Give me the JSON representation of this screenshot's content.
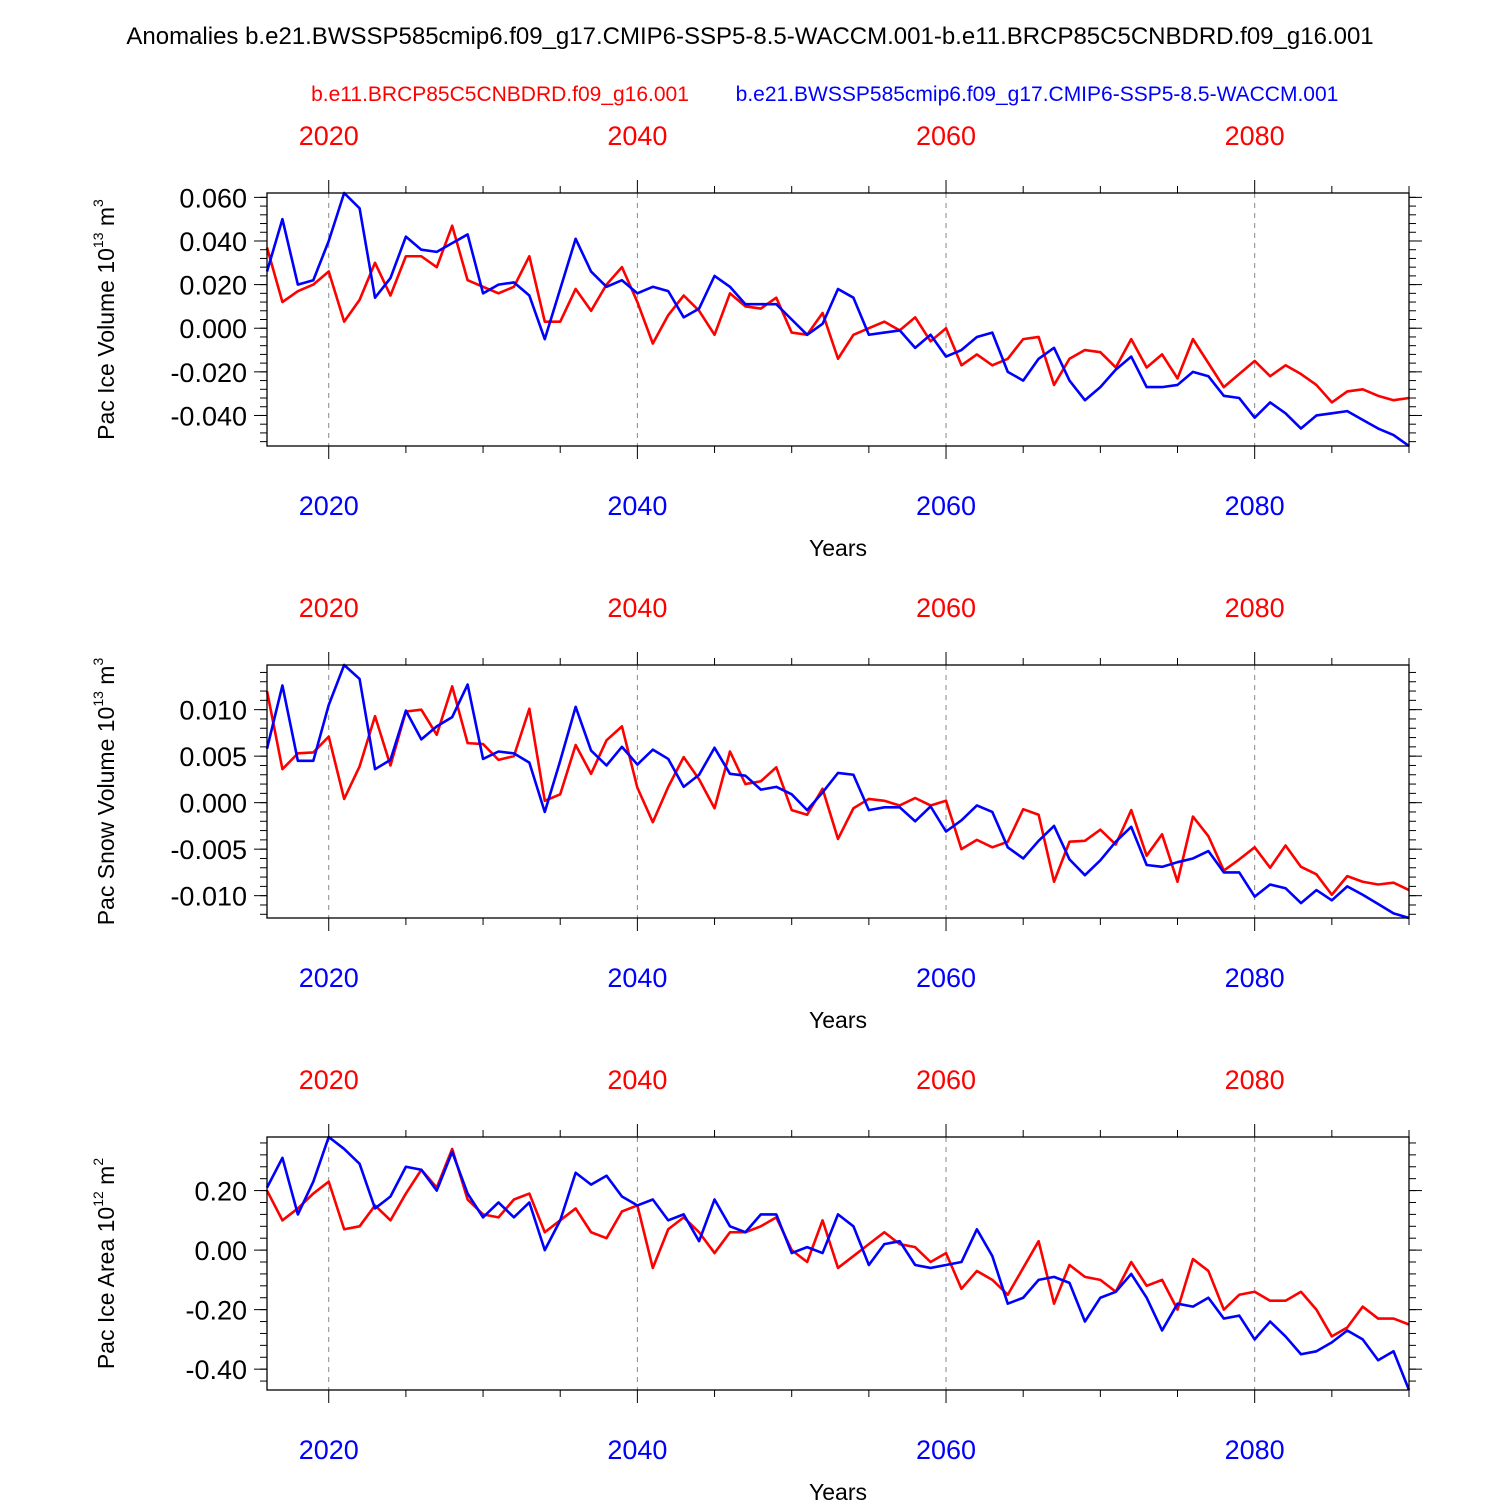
{
  "title": "Anomalies b.e21.BWSSP585cmip6.f09_g17.CMIP6-SSP5-8.5-WACCM.001-b.e11.BRCP85C5CNBDRD.f09_g16.001",
  "legend": {
    "red_label": "b.e11.BRCP85C5CNBDRD.f09_g16.001",
    "blue_label": "b.e21.BWSSP585cmip6.f09_g17.CMIP6-SSP5-8.5-WACCM.001"
  },
  "colors": {
    "red": "#ff0000",
    "blue": "#0000ff",
    "grid": "#888888",
    "axis": "#000000"
  },
  "chart_data": [
    {
      "type": "line",
      "ylabel": "Pac Ice Volume 10",
      "ylabel_sup": "13",
      "ylabel_unit": " m",
      "ylabel_unit_sup": "3",
      "xlabel": "Years",
      "xlim": [
        2016,
        2090
      ],
      "ylim": [
        -0.054,
        0.062
      ],
      "yticks": [
        0.06,
        0.04,
        0.02,
        0.0,
        -0.02,
        -0.04
      ],
      "ytick_labels": [
        "0.060",
        "0.040",
        "0.020",
        "0.000",
        "-0.020",
        "-0.040"
      ],
      "xticks": [
        2020,
        2040,
        2060,
        2080
      ],
      "xtick_labels": [
        "2020",
        "2040",
        "2060",
        "2080"
      ],
      "x_start": 2016,
      "series": [
        {
          "name": "b.e11.BRCP85C5CNBDRD.f09_g16.001",
          "color": "red",
          "values": [
            0.037,
            0.012,
            0.017,
            0.02,
            0.026,
            0.003,
            0.013,
            0.03,
            0.015,
            0.033,
            0.033,
            0.028,
            0.047,
            0.022,
            0.019,
            0.016,
            0.019,
            0.033,
            0.003,
            0.003,
            0.018,
            0.008,
            0.02,
            0.028,
            0.012,
            -0.007,
            0.006,
            0.015,
            0.008,
            -0.003,
            0.016,
            0.01,
            0.009,
            0.014,
            -0.002,
            -0.003,
            0.007,
            -0.014,
            -0.003,
            0.0,
            0.003,
            -0.001,
            0.005,
            -0.006,
            0.0,
            -0.017,
            -0.012,
            -0.017,
            -0.014,
            -0.005,
            -0.004,
            -0.026,
            -0.014,
            -0.01,
            -0.011,
            -0.018,
            -0.005,
            -0.018,
            -0.012,
            -0.023,
            -0.005,
            -0.016,
            -0.027,
            -0.021,
            -0.015,
            -0.022,
            -0.017,
            -0.021,
            -0.026,
            -0.034,
            -0.029,
            -0.028,
            -0.031,
            -0.033,
            -0.032
          ]
        },
        {
          "name": "b.e21.BWSSP585cmip6.f09_g17.CMIP6-SSP5-8.5-WACCM.001",
          "color": "blue",
          "values": [
            0.026,
            0.05,
            0.02,
            0.022,
            0.04,
            0.062,
            0.055,
            0.014,
            0.023,
            0.042,
            0.036,
            0.035,
            0.039,
            0.043,
            0.016,
            0.02,
            0.021,
            0.015,
            -0.005,
            0.018,
            0.041,
            0.026,
            0.019,
            0.022,
            0.016,
            0.019,
            0.017,
            0.005,
            0.009,
            0.024,
            0.019,
            0.011,
            0.011,
            0.011,
            0.004,
            -0.003,
            0.002,
            0.018,
            0.014,
            -0.003,
            -0.002,
            -0.001,
            -0.009,
            -0.003,
            -0.013,
            -0.01,
            -0.004,
            -0.002,
            -0.02,
            -0.024,
            -0.014,
            -0.009,
            -0.024,
            -0.033,
            -0.027,
            -0.019,
            -0.013,
            -0.027,
            -0.027,
            -0.026,
            -0.02,
            -0.022,
            -0.031,
            -0.032,
            -0.041,
            -0.034,
            -0.039,
            -0.046,
            -0.04,
            -0.039,
            -0.038,
            -0.042,
            -0.046,
            -0.049,
            -0.054
          ]
        }
      ]
    },
    {
      "type": "line",
      "ylabel": "Pac Snow Volume 10",
      "ylabel_sup": "13",
      "ylabel_unit": " m",
      "ylabel_unit_sup": "3",
      "xlabel": "Years",
      "xlim": [
        2016,
        2090
      ],
      "ylim": [
        -0.0124,
        0.0148
      ],
      "yticks": [
        0.01,
        0.005,
        0.0,
        -0.005,
        -0.01
      ],
      "ytick_labels": [
        "0.010",
        "0.005",
        "0.000",
        "-0.005",
        "-0.010"
      ],
      "xticks": [
        2020,
        2040,
        2060,
        2080
      ],
      "xtick_labels": [
        "2020",
        "2040",
        "2060",
        "2080"
      ],
      "x_start": 2016,
      "series": [
        {
          "name": "b.e11.BRCP85C5CNBDRD.f09_g16.001",
          "color": "red",
          "values": [
            0.012,
            0.0036,
            0.0053,
            0.0054,
            0.0071,
            0.0004,
            0.0039,
            0.0093,
            0.004,
            0.0098,
            0.01,
            0.0073,
            0.0125,
            0.0064,
            0.0063,
            0.0046,
            0.005,
            0.0101,
            0.0002,
            0.0009,
            0.0062,
            0.0031,
            0.0067,
            0.0082,
            0.0016,
            -0.0021,
            0.0017,
            0.0049,
            0.0025,
            -0.0006,
            0.0055,
            0.002,
            0.0023,
            0.0038,
            -0.0008,
            -0.0013,
            0.0015,
            -0.0039,
            -0.0006,
            0.0004,
            0.0002,
            -0.0003,
            0.0005,
            -0.0003,
            0.0002,
            -0.005,
            -0.004,
            -0.0048,
            -0.0042,
            -0.0007,
            -0.0013,
            -0.0085,
            -0.0042,
            -0.0041,
            -0.0029,
            -0.0045,
            -0.0008,
            -0.0057,
            -0.0034,
            -0.0085,
            -0.0015,
            -0.0036,
            -0.0073,
            -0.0061,
            -0.0048,
            -0.007,
            -0.0046,
            -0.0069,
            -0.0077,
            -0.0099,
            -0.0079,
            -0.0085,
            -0.0088,
            -0.0086,
            -0.0094
          ]
        },
        {
          "name": "b.e21.BWSSP585cmip6.f09_g17.CMIP6-SSP5-8.5-WACCM.001",
          "color": "blue",
          "values": [
            0.0058,
            0.0126,
            0.0045,
            0.0045,
            0.0105,
            0.0148,
            0.0133,
            0.0036,
            0.0046,
            0.0099,
            0.0068,
            0.0082,
            0.0092,
            0.0127,
            0.0047,
            0.0055,
            0.0053,
            0.0043,
            -0.001,
            0.0045,
            0.0103,
            0.0056,
            0.004,
            0.006,
            0.0041,
            0.0057,
            0.0047,
            0.0017,
            0.003,
            0.0059,
            0.0031,
            0.0029,
            0.0014,
            0.0017,
            0.0009,
            -0.0008,
            0.0011,
            0.0032,
            0.003,
            -0.0008,
            -0.0005,
            -0.0005,
            -0.002,
            -0.0004,
            -0.0031,
            -0.0019,
            -0.0003,
            -0.001,
            -0.0048,
            -0.006,
            -0.0041,
            -0.0025,
            -0.0061,
            -0.0078,
            -0.0062,
            -0.0042,
            -0.0026,
            -0.0067,
            -0.0069,
            -0.0064,
            -0.006,
            -0.0052,
            -0.0075,
            -0.0075,
            -0.0101,
            -0.0088,
            -0.0092,
            -0.0108,
            -0.0094,
            -0.0105,
            -0.009,
            -0.0099,
            -0.0109,
            -0.0119,
            -0.0124
          ]
        }
      ]
    },
    {
      "type": "line",
      "ylabel": "Pac Ice Area 10",
      "ylabel_sup": "12",
      "ylabel_unit": " m",
      "ylabel_unit_sup": "2",
      "xlabel": "Years",
      "xlim": [
        2016,
        2090
      ],
      "ylim": [
        -0.47,
        0.38
      ],
      "yticks": [
        0.2,
        0.0,
        -0.2,
        -0.4
      ],
      "ytick_labels": [
        "0.20",
        "0.00",
        "-0.20",
        "-0.40"
      ],
      "xticks": [
        2020,
        2040,
        2060,
        2080
      ],
      "xtick_labels": [
        "2020",
        "2040",
        "2060",
        "2080"
      ],
      "x_start": 2016,
      "series": [
        {
          "name": "b.e11.BRCP85C5CNBDRD.f09_g16.001",
          "color": "red",
          "values": [
            0.2,
            0.1,
            0.14,
            0.19,
            0.23,
            0.07,
            0.08,
            0.15,
            0.1,
            0.19,
            0.27,
            0.21,
            0.34,
            0.17,
            0.12,
            0.11,
            0.17,
            0.19,
            0.06,
            0.1,
            0.14,
            0.06,
            0.04,
            0.13,
            0.15,
            -0.06,
            0.07,
            0.11,
            0.06,
            -0.01,
            0.06,
            0.06,
            0.08,
            0.11,
            0.0,
            -0.04,
            0.1,
            -0.06,
            -0.02,
            0.02,
            0.06,
            0.02,
            0.01,
            -0.04,
            -0.01,
            -0.13,
            -0.07,
            -0.1,
            -0.15,
            -0.06,
            0.03,
            -0.18,
            -0.05,
            -0.09,
            -0.1,
            -0.14,
            -0.04,
            -0.12,
            -0.1,
            -0.2,
            -0.03,
            -0.07,
            -0.2,
            -0.15,
            -0.14,
            -0.17,
            -0.17,
            -0.14,
            -0.2,
            -0.29,
            -0.26,
            -0.19,
            -0.23,
            -0.23,
            -0.25
          ]
        },
        {
          "name": "b.e21.BWSSP585cmip6.f09_g17.CMIP6-SSP5-8.5-WACCM.001",
          "color": "blue",
          "values": [
            0.21,
            0.31,
            0.12,
            0.23,
            0.38,
            0.34,
            0.29,
            0.14,
            0.18,
            0.28,
            0.27,
            0.2,
            0.33,
            0.19,
            0.11,
            0.16,
            0.11,
            0.16,
            0.0,
            0.1,
            0.26,
            0.22,
            0.25,
            0.18,
            0.15,
            0.17,
            0.1,
            0.12,
            0.03,
            0.17,
            0.08,
            0.06,
            0.12,
            0.12,
            -0.01,
            0.01,
            -0.01,
            0.12,
            0.08,
            -0.05,
            0.02,
            0.03,
            -0.05,
            -0.06,
            -0.05,
            -0.04,
            0.07,
            -0.02,
            -0.18,
            -0.16,
            -0.1,
            -0.09,
            -0.11,
            -0.24,
            -0.16,
            -0.14,
            -0.08,
            -0.16,
            -0.27,
            -0.18,
            -0.19,
            -0.16,
            -0.23,
            -0.22,
            -0.3,
            -0.24,
            -0.29,
            -0.35,
            -0.34,
            -0.31,
            -0.27,
            -0.3,
            -0.37,
            -0.34,
            -0.47
          ]
        }
      ]
    }
  ]
}
